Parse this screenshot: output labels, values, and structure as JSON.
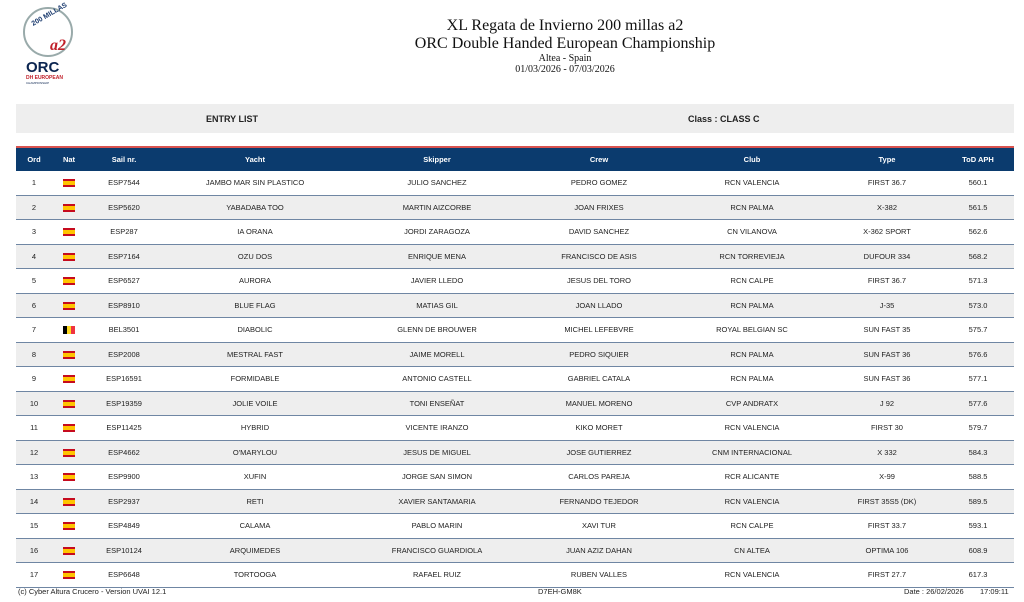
{
  "header": {
    "title": "XL Regata de Invierno 200 millas a2",
    "subtitle": "ORC Double Handed European Championship",
    "location": "Altea - Spain",
    "dates": "01/03/2026 - 07/03/2026",
    "logo_text": "200 MILLAS a2 ORC DH EUROPEAN CHAMPIONSHIP"
  },
  "band": {
    "left": "ENTRY LIST",
    "right": "Class : CLASS C"
  },
  "table": {
    "columns": [
      "Ord",
      "Nat",
      "Sail nr.",
      "Yacht",
      "Skipper",
      "Crew",
      "Club",
      "Type",
      "ToD APH"
    ],
    "rows": [
      [
        "1",
        "ESP",
        "ESP7544",
        "JAMBO MAR SIN PLASTICO",
        "JULIO SANCHEZ",
        "PEDRO GOMEZ",
        "RCN VALENCIA",
        "FIRST 36.7",
        "560.1"
      ],
      [
        "2",
        "ESP",
        "ESP5620",
        "YABADABA TOO",
        "MARTIN AIZCORBE",
        "JOAN FRIXES",
        "RCN PALMA",
        "X-382",
        "561.5"
      ],
      [
        "3",
        "ESP",
        "ESP287",
        "IA ORANA",
        "JORDI ZARAGOZA",
        "DAVID SANCHEZ",
        "CN VILANOVA",
        "X-362 SPORT",
        "562.6"
      ],
      [
        "4",
        "ESP",
        "ESP7164",
        "OZU DOS",
        "ENRIQUE MENA",
        "FRANCISCO DE ASIS",
        "RCN TORREVIEJA",
        "DUFOUR 334",
        "568.2"
      ],
      [
        "5",
        "ESP",
        "ESP6527",
        "AURORA",
        "JAVIER LLEDO",
        "JESUS DEL TORO",
        "RCN CALPE",
        "FIRST 36.7",
        "571.3"
      ],
      [
        "6",
        "ESP",
        "ESP8910",
        "BLUE FLAG",
        "MATIAS GIL",
        "JOAN LLADO",
        "RCN PALMA",
        "J-35",
        "573.0"
      ],
      [
        "7",
        "BEL",
        "BEL3501",
        "DIABOLIC",
        "GLENN DE BROUWER",
        "MICHEL LEFEBVRE",
        "ROYAL BELGIAN SC",
        "SUN FAST 35",
        "575.7"
      ],
      [
        "8",
        "ESP",
        "ESP2008",
        "MESTRAL FAST",
        "JAIME MORELL",
        "PEDRO SIQUIER",
        "RCN PALMA",
        "SUN FAST 36",
        "576.6"
      ],
      [
        "9",
        "ESP",
        "ESP16591",
        "FORMIDABLE",
        "ANTONIO CASTELL",
        "GABRIEL CATALA",
        "RCN PALMA",
        "SUN FAST 36",
        "577.1"
      ],
      [
        "10",
        "ESP",
        "ESP19359",
        "JOLIE VOILE",
        "TONI ENSEÑAT",
        "MANUEL MORENO",
        "CVP ANDRATX",
        "J 92",
        "577.6"
      ],
      [
        "11",
        "ESP",
        "ESP11425",
        "HYBRID",
        "VICENTE IRANZO",
        "KIKO MORET",
        "RCN VALENCIA",
        "FIRST 30",
        "579.7"
      ],
      [
        "12",
        "ESP",
        "ESP4662",
        "O'MARYLOU",
        "JESUS DE MIGUEL",
        "JOSE GUTIERREZ",
        "CNM INTERNACIONAL",
        "X 332",
        "584.3"
      ],
      [
        "13",
        "ESP",
        "ESP9900",
        "XUFIN",
        "JORGE SAN SIMON",
        "CARLOS PAREJA",
        "RCR ALICANTE",
        "X-99",
        "588.5"
      ],
      [
        "14",
        "ESP",
        "ESP2937",
        "RETI",
        "XAVIER SANTAMARIA",
        "FERNANDO TEJEDOR",
        "RCN VALENCIA",
        "FIRST 35S5 (DK)",
        "589.5"
      ],
      [
        "15",
        "ESP",
        "ESP4849",
        "CALAMA",
        "PABLO MARIN",
        "XAVI TUR",
        "RCN CALPE",
        "FIRST 33.7",
        "593.1"
      ],
      [
        "16",
        "ESP",
        "ESP10124",
        "ARQUIMEDES",
        "FRANCISCO GUARDIOLA",
        "JUAN AZIZ DAHAN",
        "CN ALTEA",
        "OPTIMA 106",
        "608.9"
      ],
      [
        "17",
        "ESP",
        "ESP6648",
        "TORTOOGA",
        "RAFAEL RUIZ",
        "RUBEN VALLES",
        "RCN VALENCIA",
        "FIRST 27.7",
        "617.3"
      ]
    ]
  },
  "footer": {
    "left": "(c) Cyber Altura Crucero -  Version UVAI 12.1",
    "center": "D7EH-GM8K",
    "date": "Date : 26/02/2026",
    "time": "17:09:11"
  },
  "colors": {
    "header_bg": "#0b3b6e",
    "header_top": "#d9534f",
    "band_bg": "#eeeeee"
  }
}
